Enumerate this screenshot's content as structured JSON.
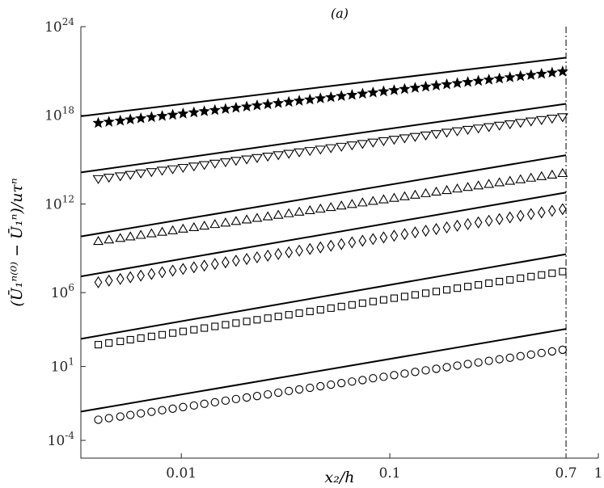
{
  "chart_data": {
    "type": "scatter",
    "title": "(a)",
    "xlabel": "x₂/h",
    "ylabel": "(Ū₁ⁿ⁽⁰⁾ − Ū₁ⁿ)/uτⁿ",
    "x_scale": "log",
    "y_scale": "log",
    "xlim": [
      0.0033,
      1.0
    ],
    "ylim": [
      6.3e-06,
      1e+24
    ],
    "x_ticks": [
      {
        "value": 0.01,
        "label": "0.01"
      },
      {
        "value": 0.1,
        "label": "0.1"
      },
      {
        "value": 0.7,
        "label": "0.7"
      },
      {
        "value": 1,
        "label": "1"
      }
    ],
    "y_ticks": [
      {
        "value": 0.0001,
        "base": "10",
        "exp": "-4"
      },
      {
        "value": 10,
        "base": "10",
        "exp": "1"
      },
      {
        "value": 1000000,
        "base": "10",
        "exp": "6"
      },
      {
        "value": 1000000000000.0,
        "base": "10",
        "exp": "12"
      },
      {
        "value": 1e+18,
        "base": "10",
        "exp": "18"
      },
      {
        "value": 1e+24,
        "base": "10",
        "exp": "24"
      }
    ],
    "reference_line": {
      "x": 0.7,
      "style": "dash-dot"
    },
    "grid": false,
    "x": [
      0.004,
      0.0045,
      0.0051,
      0.0057,
      0.0064,
      0.0072,
      0.0081,
      0.0091,
      0.0102,
      0.0115,
      0.0129,
      0.0145,
      0.0163,
      0.0183,
      0.0206,
      0.0231,
      0.026,
      0.0292,
      0.0328,
      0.0368,
      0.0414,
      0.0465,
      0.0522,
      0.0586,
      0.0659,
      0.074,
      0.0831,
      0.0934,
      0.1049,
      0.1178,
      0.1323,
      0.1487,
      0.167,
      0.1876,
      0.2107,
      0.2367,
      0.2659,
      0.2987,
      0.3355,
      0.3769,
      0.4234,
      0.4756,
      0.5342,
      0.6001,
      0.674
    ],
    "series": [
      {
        "marker": "circle",
        "fit": {
          "y_at_xmin": 0.014,
          "y_at_xref": 3500
        },
        "y": [
          0.0025,
          0.0032,
          0.0041,
          0.0052,
          0.0067,
          0.0086,
          0.011,
          0.014,
          0.018,
          0.023,
          0.03,
          0.038,
          0.049,
          0.063,
          0.08,
          0.1,
          0.13,
          0.17,
          0.22,
          0.28,
          0.36,
          0.46,
          0.59,
          0.75,
          0.96,
          1.2,
          1.6,
          2.0,
          2.6,
          3.3,
          4.3,
          5.5,
          7.0,
          9.0,
          11.5,
          14.7,
          18.8,
          24,
          31,
          39,
          50,
          64,
          82,
          105,
          135
        ]
      },
      {
        "marker": "square",
        "fit": {
          "y_at_xmin": 1200,
          "y_at_xref": 400000000.0
        },
        "y": [
          300,
          390,
          500,
          650,
          840,
          1090,
          1410,
          1830,
          2370,
          3070,
          3980,
          5160,
          6690,
          8670,
          11200,
          14500,
          18800,
          24400,
          31600,
          40900,
          53000,
          68700,
          89000,
          115000,
          149000,
          193000,
          250000,
          324000,
          420000,
          545000,
          706000,
          915000,
          1190000,
          1540000,
          1990000,
          2580000,
          3350000,
          4340000,
          5620000,
          7280000,
          9440000,
          12200000,
          15800000,
          20500000,
          26600000
        ]
      },
      {
        "marker": "diamond",
        "fit": {
          "y_at_xmin": 20000000.0,
          "y_at_xref": 6000000000000.0
        },
        "y": [
          5000000.0,
          6500000.0,
          8400000.0,
          10900000.0,
          14100000.0,
          18300000.0,
          23700000.0,
          30700000.0,
          39800000.0,
          51600000.0,
          66900000.0,
          86700000.0,
          112000000.0,
          145000000.0,
          188000000.0,
          244000000.0,
          316000000.0,
          410000000.0,
          530000000.0,
          690000000.0,
          890000000.0,
          1150000000.0,
          1490000000.0,
          1930000000.0,
          2500000000.0,
          3240000000.0,
          4200000000.0,
          5450000000.0,
          7060000000.0,
          9150000000.0,
          11900000000.0,
          15400000000.0,
          19900000000.0,
          25800000000.0,
          33500000000.0,
          43400000000.0,
          56200000000.0,
          72800000000.0,
          94400000000.0,
          122000000000.0,
          158000000000.0,
          205000000000.0,
          266000000000.0,
          345000000000.0,
          447000000000.0
        ]
      },
      {
        "marker": "triangle-up",
        "fit": {
          "y_at_xmin": 10000000000.0,
          "y_at_xref": 2000000000000000.0
        },
        "y": [
          3000000000.0,
          3800000000.0,
          4800000000.0,
          6100000000.0,
          7800000000.0,
          9900000000.0,
          12600000000.0,
          16000000000.0,
          20400000000.0,
          26000000000.0,
          33000000000.0,
          42000000000.0,
          53000000000.0,
          68000000000.0,
          86000000000.0,
          110000000000.0,
          140000000000.0,
          178000000000.0,
          226000000000.0,
          288000000000.0,
          366000000000.0,
          466000000000.0,
          593000000000.0,
          755000000000.0,
          960000000000.0,
          1220000000000.0,
          1550000000000.0,
          1980000000000.0,
          2510000000000.0,
          3200000000000.0,
          4070000000000.0,
          5180000000000.0,
          6590000000000.0,
          8390000000000.0,
          10700000000000.0,
          13600000000000.0,
          17300000000000.0,
          22000000000000.0,
          28000000000000.0,
          35600000000000.0,
          45300000000000.0,
          57600000000000.0,
          73300000000000.0,
          93300000000000.0,
          119000000000000.0
        ]
      },
      {
        "marker": "triangle-down",
        "fit": {
          "y_at_xmin": 200000000000000.0,
          "y_at_xref": 6e+18
        },
        "y": [
          50000000000000.0,
          62000000000000.0,
          77000000000000.0,
          96000000000000.0,
          120000000000000.0,
          149000000000000.0,
          185000000000000.0,
          230000000000000.0,
          287000000000000.0,
          357000000000000.0,
          445000000000000.0,
          554000000000000.0,
          690000000000000.0,
          859000000000000.0,
          1070000000000000.0,
          1330000000000000.0,
          1660000000000000.0,
          2060000000000000.0,
          2570000000000000.0,
          3200000000000000.0,
          3980000000000000.0,
          4960000000000000.0,
          6170000000000000.0,
          7690000000000000.0,
          9570000000000000.0,
          1.19e+16,
          1.48e+16,
          1.85e+16,
          2.3e+16,
          2.86e+16,
          3.56e+16,
          4.44e+16,
          5.53e+16,
          6.88e+16,
          8.57e+16,
          1.07e+17,
          1.33e+17,
          1.65e+17,
          2.06e+17,
          2.56e+17,
          3.19e+17,
          3.98e+17,
          4.95e+17,
          6.17e+17,
          7.68e+17
        ]
      },
      {
        "marker": "pentagram",
        "fit": {
          "y_at_xmin": 1.2e+18,
          "y_at_xref": 8e+21
        },
        "y": [
          3e+17,
          3.6e+17,
          4.3e+17,
          5.2e+17,
          6.2e+17,
          7.5e+17,
          9e+17,
          1.08e+18,
          1.3e+18,
          1.56e+18,
          1.87e+18,
          2.24e+18,
          2.69e+18,
          3.23e+18,
          3.88e+18,
          4.65e+18,
          5.58e+18,
          6.7e+18,
          8.04e+18,
          9.65e+18,
          1.16e+19,
          1.39e+19,
          1.67e+19,
          2e+19,
          2.4e+19,
          2.88e+19,
          3.46e+19,
          4.15e+19,
          4.98e+19,
          5.97e+19,
          7.17e+19,
          8.6e+19,
          1.03e+20,
          1.24e+20,
          1.49e+20,
          1.78e+20,
          2.14e+20,
          2.57e+20,
          3.08e+20,
          3.7e+20,
          4.44e+20,
          5.33e+20,
          6.39e+20,
          7.67e+20,
          9.2e+20
        ]
      }
    ]
  }
}
